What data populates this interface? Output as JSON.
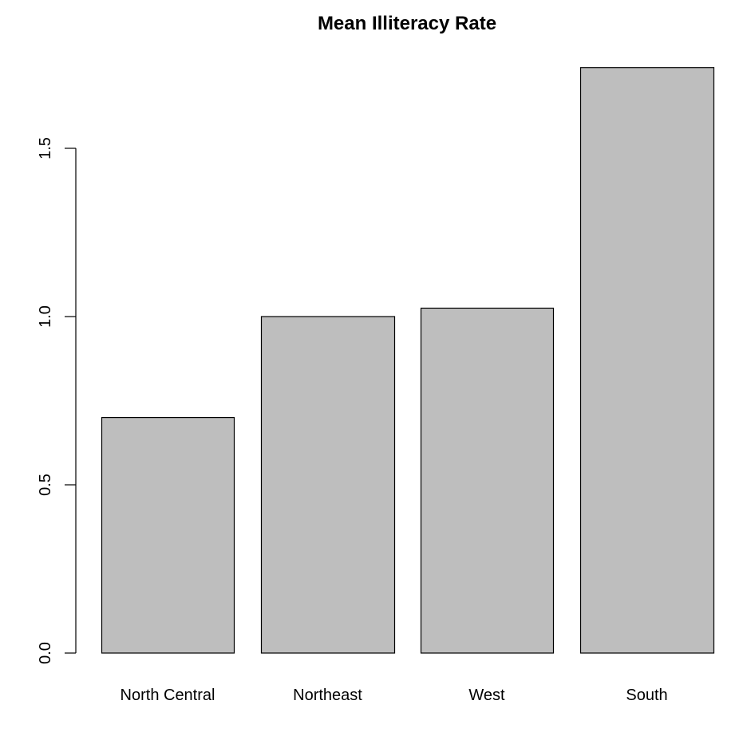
{
  "chart_data": {
    "type": "bar",
    "title": "Mean Illiteracy Rate",
    "xlabel": "",
    "ylabel": "",
    "categories": [
      "North Central",
      "Northeast",
      "West",
      "South"
    ],
    "values": [
      0.7,
      1.0,
      1.025,
      1.74
    ],
    "ylim": [
      0,
      1.5
    ],
    "yticks": [
      0.0,
      0.5,
      1.0,
      1.5
    ],
    "ytick_labels": [
      "0.0",
      "0.5",
      "1.0",
      "1.5"
    ],
    "grid": false,
    "legend": "none",
    "colors": {
      "bar_fill": "#bebebe",
      "bar_stroke": "#000000",
      "axis": "#000000",
      "background": "#ffffff"
    }
  }
}
